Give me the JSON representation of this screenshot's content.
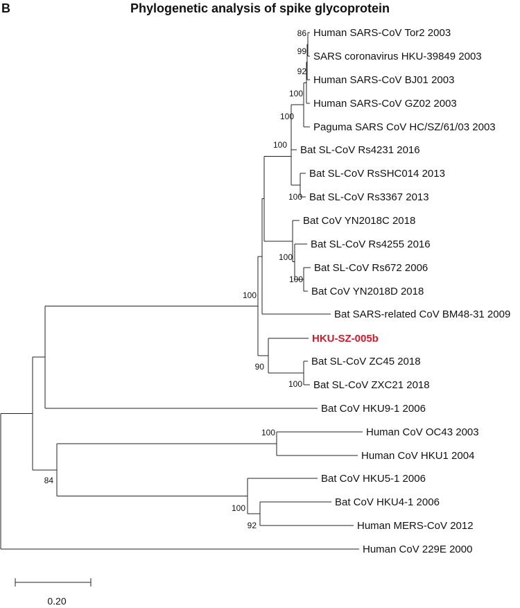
{
  "figure": {
    "panel_letter": "B",
    "title": "Phylogenetic analysis of spike glycoprotein",
    "scale_bar": "0.20"
  },
  "tree": {
    "leaves": [
      {
        "id": "tor2",
        "label": "Human SARS-CoV Tor2 2003"
      },
      {
        "id": "hku398",
        "label": "SARS coronavirus HKU-39849 2003"
      },
      {
        "id": "bj01",
        "label": "Human SARS-CoV BJ01 2003"
      },
      {
        "id": "gz02",
        "label": "Human SARS-CoV GZ02 2003"
      },
      {
        "id": "paguma",
        "label": "Paguma SARS CoV HC/SZ/61/03 2003"
      },
      {
        "id": "rs4231",
        "label": "Bat SL-CoV Rs4231 2016"
      },
      {
        "id": "rsshc",
        "label": "Bat SL-CoV RsSHC014 2013"
      },
      {
        "id": "rs3367",
        "label": "Bat SL-CoV Rs3367 2013"
      },
      {
        "id": "yn18c",
        "label": "Bat CoV YN2018C 2018"
      },
      {
        "id": "rs4255",
        "label": "Bat SL-CoV Rs4255 2016"
      },
      {
        "id": "rs672",
        "label": "Bat SL-CoV Rs672 2006"
      },
      {
        "id": "yn18d",
        "label": "Bat CoV YN2018D 2018"
      },
      {
        "id": "bm48",
        "label": "Bat SARS-related CoV BM48-31 2009"
      },
      {
        "id": "hkusz",
        "label": "HKU-SZ-005b",
        "highlight": true
      },
      {
        "id": "zc45",
        "label": "Bat SL-CoV ZC45 2018"
      },
      {
        "id": "zxc21",
        "label": "Bat SL-CoV ZXC21 2018"
      },
      {
        "id": "hku9",
        "label": "Bat CoV HKU9-1 2006"
      },
      {
        "id": "oc43",
        "label": "Human CoV OC43 2003"
      },
      {
        "id": "hku1",
        "label": "Human CoV HKU1 2004"
      },
      {
        "id": "hku5",
        "label": "Bat CoV HKU5-1 2006"
      },
      {
        "id": "hku4",
        "label": "Bat CoV HKU4-1 2006"
      },
      {
        "id": "mers",
        "label": "Human MERS-CoV 2012"
      },
      {
        "id": "e229",
        "label": "Human CoV 229E 2000"
      }
    ],
    "bootstrap": [
      "86",
      "99",
      "92",
      "100",
      "100",
      "100",
      "100",
      "100",
      "100",
      "100",
      "90",
      "100",
      "100",
      "84",
      "100",
      "92"
    ]
  }
}
